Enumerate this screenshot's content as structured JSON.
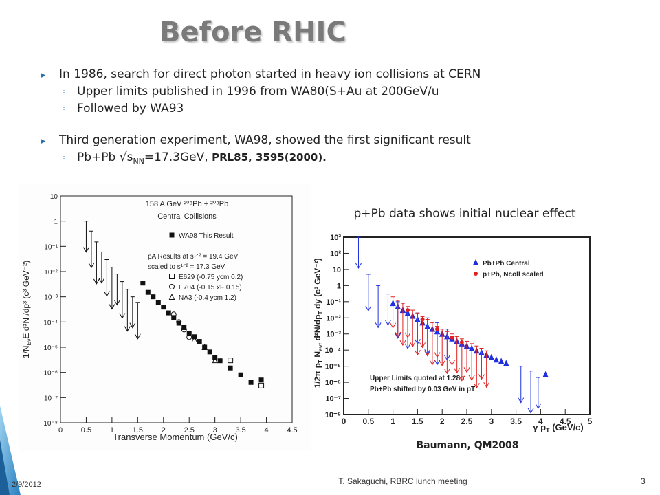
{
  "slide": {
    "title": "Before RHIC",
    "bullets": [
      {
        "text": "In 1986, search for direct photon started in heavy ion collisions at CERN",
        "sub": [
          "Upper limits published in 1996 from WA80(S+Au at 200GeV/u",
          "Followed by WA93"
        ]
      },
      {
        "text": "Third generation experiment, WA98, showed the first significant result",
        "sub_parts": [
          "Pb+Pb √s",
          "NN",
          "=17.3GeV, "
        ],
        "ref": "PRL85, 3595(2000)."
      }
    ],
    "caption": "p+Pb data shows initial nuclear effect",
    "credit": "Baumann, QM2008"
  },
  "footer": {
    "date": "2/9/2012",
    "presenter": "T. Sakaguchi, RBRC lunch meeting",
    "page": "3"
  },
  "chart_data": [
    {
      "type": "scatter",
      "log_y": true,
      "title_lines": [
        "158 A GeV ²⁰⁸Pb + ²⁰⁸Pb",
        "Central Collisions"
      ],
      "notes": [
        "pA Results at s¹ᐟ² = 19.4 GeV",
        "scaled to s¹ᐟ² = 17.3 GeV"
      ],
      "x_label": [
        "Transverse Momentum (GeV/c)"
      ],
      "y_label": [
        "1/N",
        "Ev",
        "E d³N /dp³ (c³ GeV⁻²)"
      ],
      "xlim": [
        0,
        4.5
      ],
      "xticks": [
        0,
        0.5,
        1,
        1.5,
        2,
        2.5,
        3,
        3.5,
        4,
        4.5
      ],
      "ylim": [
        1e-08,
        10
      ],
      "yticks": [
        10,
        1,
        {
          "value": 0.1,
          "label": "10⁻¹"
        },
        {
          "value": 0.01,
          "label": "10⁻²"
        },
        {
          "value": 0.001,
          "label": "10⁻³"
        },
        {
          "value": 0.0001,
          "label": "10⁻⁴"
        },
        {
          "value": 1e-05,
          "label": "10⁻⁵"
        },
        {
          "value": 1e-06,
          "label": "10⁻⁶"
        },
        {
          "value": 1e-07,
          "label": "10⁻⁷"
        },
        {
          "value": 1e-08,
          "label": "10⁻⁸"
        }
      ],
      "series": [
        {
          "name": "WA98 This Result",
          "color": "#111111",
          "marker": "square",
          "x": [
            1.6,
            1.7,
            1.8,
            1.9,
            2.0,
            2.1,
            2.2,
            2.3,
            2.4,
            2.5,
            2.6,
            2.7,
            2.8,
            2.9,
            3.0,
            3.1,
            3.3,
            3.5,
            3.7,
            3.9
          ],
          "values": [
            0.0035,
            0.0015,
            0.001,
            0.0006,
            0.00039,
            0.00023,
            0.00015,
            9e-05,
            6e-05,
            3.5e-05,
            2.6e-05,
            1.7e-05,
            1e-05,
            6.5e-06,
            4e-06,
            2.9e-06,
            1.5e-06,
            8e-07,
            4e-07,
            5e-07
          ],
          "limit_x": [
            0.5,
            0.6,
            0.7,
            0.8,
            0.9,
            1.0,
            1.1,
            1.2,
            1.3,
            1.4,
            1.5
          ],
          "limits": [
            1,
            0.4,
            0.15,
            0.06,
            0.03,
            0.015,
            0.008,
            0.004,
            0.002,
            0.001,
            0.0006
          ]
        },
        {
          "name": "E629 (-0.75 ycm 0.2)",
          "color": "#111111",
          "marker": "open-square",
          "x": [
            3.3,
            3.9
          ],
          "values": [
            3e-06,
            3e-07
          ]
        },
        {
          "name": "E704 (-0.15 xF 0.15)",
          "color": "#111111",
          "marker": "circle",
          "x": [
            2.2,
            2.3,
            2.4,
            2.5
          ],
          "values": [
            0.0002,
            0.0001,
            5e-05,
            2.5e-05
          ]
        },
        {
          "name": "NA3 (-0.4 ycm 1.2)",
          "color": "#111111",
          "marker": "triangle",
          "x": [
            2.6,
            2.8,
            3.0
          ],
          "values": [
            2e-05,
            1e-05,
            3e-06
          ]
        }
      ]
    },
    {
      "type": "scatter",
      "log_y": true,
      "notes": [
        "Upper Limits quoted at 1.28σ",
        "Pb+Pb shifted by 0.03 GeV in pT"
      ],
      "x_label": [
        "γ p",
        "T",
        " (GeV/c)"
      ],
      "y_label": [
        "1/2π p",
        "T",
        " N",
        "evt",
        " d²N/dp",
        "T",
        " dy  (c³ GeV⁻²)"
      ],
      "xlim": [
        0,
        5
      ],
      "xticks": [
        0,
        0.5,
        1,
        1.5,
        2,
        2.5,
        3,
        3.5,
        4,
        4.5,
        5
      ],
      "ylim": [
        1e-08,
        1000
      ],
      "yticks": [
        {
          "value": 1000,
          "label": "10³"
        },
        {
          "value": 100,
          "label": "10²"
        },
        10,
        1,
        {
          "value": 0.1,
          "label": "10⁻¹"
        },
        {
          "value": 0.01,
          "label": "10⁻²"
        },
        {
          "value": 0.001,
          "label": "10⁻³"
        },
        {
          "value": 0.0001,
          "label": "10⁻⁴"
        },
        {
          "value": 1e-05,
          "label": "10⁻⁵"
        },
        {
          "value": 1e-06,
          "label": "10⁻⁶"
        },
        {
          "value": 1e-07,
          "label": "10⁻⁷"
        },
        {
          "value": 1e-08,
          "label": "10⁻⁸"
        }
      ],
      "series": [
        {
          "name": "Pb+Pb Central",
          "color": "#1f2fe0",
          "marker": "triangle-filled",
          "x": [
            1.0,
            1.1,
            1.2,
            1.3,
            1.4,
            1.5,
            1.6,
            1.7,
            1.8,
            1.9,
            2.0,
            2.1,
            2.2,
            2.3,
            2.4,
            2.5,
            2.6,
            2.7,
            2.8,
            2.9,
            3.0,
            3.1,
            3.2,
            3.3,
            4.1
          ],
          "values": [
            0.08,
            0.05,
            0.03,
            0.02,
            0.013,
            0.008,
            0.005,
            0.003,
            0.002,
            0.0014,
            0.001,
            0.0007,
            0.0005,
            0.00035,
            0.00025,
            0.00018,
            0.00013,
            9e-05,
            7e-05,
            5e-05,
            3.5e-05,
            2.5e-05,
            2e-05,
            1.5e-05,
            3e-06
          ],
          "limit_x": [
            0.3,
            0.5,
            0.7,
            0.9,
            1.1,
            1.3,
            1.5,
            1.7,
            1.9,
            2.1,
            3.6,
            3.8,
            3.95
          ],
          "limits": [
            1000,
            5,
            1,
            0.3,
            0.1,
            0.05,
            0.02,
            0.01,
            0.005,
            0.002,
            1e-05,
            5e-06,
            2e-06
          ]
        },
        {
          "name": "p+Pb, Ncoll scaled",
          "color": "#e02020",
          "marker": "circle-filled",
          "x": [
            1.3,
            1.6,
            1.9,
            2.2,
            2.4
          ],
          "values": [
            0.03,
            0.008,
            0.002,
            0.0006,
            0.0003
          ],
          "limit_x": [
            1.0,
            1.1,
            1.2,
            1.3,
            1.4,
            1.5,
            1.6,
            1.7,
            1.8,
            1.9,
            2.0,
            2.1,
            2.2,
            2.3,
            2.4,
            2.5,
            2.6,
            2.7,
            2.8,
            2.9
          ],
          "limits": [
            0.2,
            0.12,
            0.08,
            0.05,
            0.03,
            0.02,
            0.012,
            0.008,
            0.005,
            0.003,
            0.002,
            0.0014,
            0.001,
            0.0007,
            0.0005,
            0.00035,
            0.00025,
            0.00018,
            0.00013,
            9e-05
          ]
        }
      ]
    }
  ]
}
